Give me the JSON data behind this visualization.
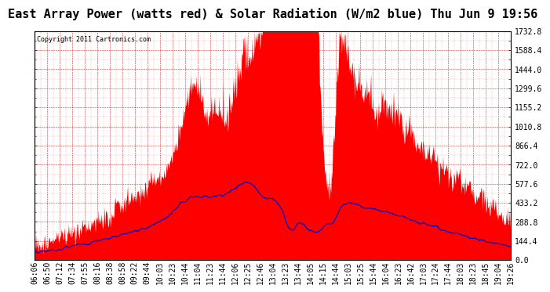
{
  "title": "East Array Power (watts red) & Solar Radiation (W/m2 blue) Thu Jun 9 19:56",
  "copyright_text": "Copyright 2011 Cartronics.com",
  "y_max": 1732.8,
  "y_min": 0.0,
  "y_ticks": [
    0.0,
    144.4,
    288.8,
    433.2,
    577.6,
    722.0,
    866.4,
    1010.8,
    1155.2,
    1299.6,
    1444.0,
    1588.4,
    1732.8
  ],
  "x_labels": [
    "06:06",
    "06:50",
    "07:12",
    "07:34",
    "07:55",
    "08:16",
    "08:38",
    "08:58",
    "09:22",
    "09:44",
    "10:03",
    "10:23",
    "10:44",
    "11:04",
    "11:23",
    "11:44",
    "12:06",
    "12:25",
    "12:46",
    "13:04",
    "13:23",
    "13:44",
    "14:05",
    "14:15",
    "14:44",
    "15:03",
    "15:25",
    "15:44",
    "16:04",
    "16:23",
    "16:42",
    "17:03",
    "17:24",
    "17:44",
    "18:03",
    "18:23",
    "18:45",
    "19:04",
    "19:26"
  ],
  "background_color": "#ffffff",
  "fill_color": "#ff0000",
  "line_color": "#0000cc",
  "grid_color": "#cc0000",
  "title_fontsize": 11,
  "tick_fontsize": 7,
  "copyright_fontsize": 6
}
